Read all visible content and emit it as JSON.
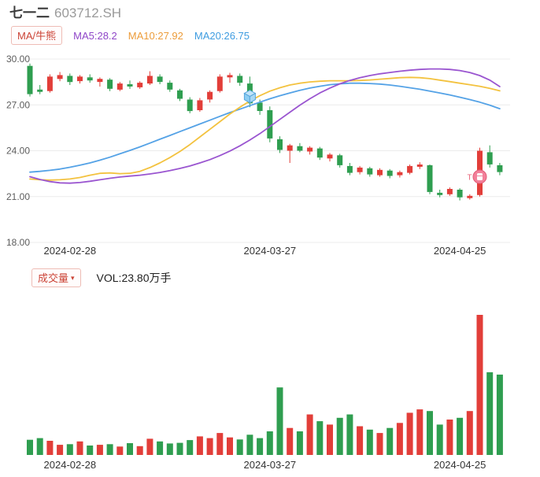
{
  "header": {
    "stock_name": "七一二",
    "stock_code": "603712.SH"
  },
  "indicators": {
    "ma_badge": "MA/牛熊",
    "ma5_label": "MA5:28.2",
    "ma10_label": "MA10:27.92",
    "ma20_label": "MA20:26.75",
    "ma5_color": "#8f46c8",
    "ma10_color": "#ec9c3a",
    "ma20_color": "#3e9ce0"
  },
  "price_axis": {
    "ticks": [
      "30.00",
      "27.00",
      "24.00",
      "21.00",
      "18.00"
    ],
    "min": 18,
    "max": 30
  },
  "x_axis": {
    "labels": [
      "2024-02-28",
      "2024-03-27",
      "2024-04-25"
    ],
    "label_indices": [
      4,
      24,
      43
    ]
  },
  "volume_panel": {
    "badge": "成交量",
    "arrow": "▾",
    "vol_label": "VOL:23.80万手"
  },
  "colors": {
    "up": "#e23e39",
    "down": "#2f9e50",
    "grid": "#ececec"
  },
  "chart_data": {
    "type": "candlestick",
    "panels": [
      "price",
      "volume"
    ],
    "title": "七一二 603712.SH",
    "price_range": [
      18,
      30
    ],
    "x_tick_labels": [
      "2024-02-28",
      "2024-03-27",
      "2024-04-25"
    ],
    "candles": [
      [
        29.55,
        29.7,
        27.55,
        27.7
      ],
      [
        28.0,
        28.3,
        27.7,
        27.85
      ],
      [
        27.9,
        29.0,
        27.8,
        28.85
      ],
      [
        28.7,
        29.15,
        28.55,
        28.95
      ],
      [
        28.9,
        29.05,
        28.3,
        28.5
      ],
      [
        28.55,
        28.95,
        28.4,
        28.85
      ],
      [
        28.8,
        29.0,
        28.45,
        28.6
      ],
      [
        28.5,
        28.8,
        28.2,
        28.7
      ],
      [
        28.65,
        28.75,
        27.9,
        28.05
      ],
      [
        28.0,
        28.5,
        27.9,
        28.4
      ],
      [
        28.35,
        28.6,
        28.05,
        28.2
      ],
      [
        28.15,
        28.55,
        28.05,
        28.45
      ],
      [
        28.4,
        29.2,
        28.3,
        28.9
      ],
      [
        28.85,
        29.0,
        28.35,
        28.5
      ],
      [
        28.45,
        28.6,
        27.85,
        28.0
      ],
      [
        27.95,
        28.05,
        27.25,
        27.4
      ],
      [
        27.35,
        27.5,
        26.45,
        26.6
      ],
      [
        26.65,
        27.45,
        26.55,
        27.3
      ],
      [
        27.35,
        27.95,
        27.15,
        27.85
      ],
      [
        27.9,
        29.0,
        27.8,
        28.85
      ],
      [
        28.8,
        29.1,
        28.45,
        28.95
      ],
      [
        28.9,
        29.05,
        28.25,
        28.45
      ],
      [
        28.4,
        28.85,
        26.85,
        27.1
      ],
      [
        27.15,
        27.35,
        26.35,
        26.6
      ],
      [
        26.65,
        26.9,
        24.55,
        24.8
      ],
      [
        24.75,
        24.95,
        23.85,
        24.05
      ],
      [
        24.0,
        24.45,
        23.2,
        24.35
      ],
      [
        24.3,
        24.5,
        23.9,
        24.0
      ],
      [
        23.95,
        24.3,
        23.75,
        24.2
      ],
      [
        24.15,
        24.25,
        23.4,
        23.55
      ],
      [
        23.5,
        23.85,
        23.3,
        23.75
      ],
      [
        23.7,
        23.8,
        22.9,
        23.05
      ],
      [
        23.0,
        23.2,
        22.4,
        22.55
      ],
      [
        22.6,
        23.0,
        22.45,
        22.9
      ],
      [
        22.85,
        22.95,
        22.3,
        22.45
      ],
      [
        22.4,
        22.85,
        22.3,
        22.75
      ],
      [
        22.7,
        22.8,
        22.2,
        22.35
      ],
      [
        22.4,
        22.7,
        22.25,
        22.6
      ],
      [
        22.55,
        23.1,
        22.45,
        23.0
      ],
      [
        22.95,
        23.25,
        22.8,
        23.1
      ],
      [
        23.05,
        23.1,
        21.15,
        21.3
      ],
      [
        21.25,
        21.45,
        20.95,
        21.1
      ],
      [
        21.15,
        21.6,
        21.05,
        21.5
      ],
      [
        21.45,
        21.55,
        20.75,
        20.95
      ],
      [
        20.9,
        21.15,
        20.8,
        21.05
      ],
      [
        21.1,
        24.2,
        21.0,
        24.0
      ],
      [
        23.9,
        24.35,
        22.9,
        23.1
      ],
      [
        23.05,
        23.2,
        22.4,
        22.6
      ]
    ],
    "ma5": [
      22.3,
      22.12,
      21.98,
      21.9,
      21.88,
      21.92,
      22.0,
      22.1,
      22.2,
      22.28,
      22.34,
      22.4,
      22.48,
      22.58,
      22.7,
      22.84,
      23.0,
      23.2,
      23.42,
      23.68,
      23.98,
      24.32,
      24.7,
      25.12,
      25.58,
      26.05,
      26.52,
      26.98,
      27.4,
      27.78,
      28.1,
      28.38,
      28.6,
      28.78,
      28.92,
      29.03,
      29.12,
      29.2,
      29.27,
      29.32,
      29.35,
      29.35,
      29.32,
      29.25,
      29.12,
      28.92,
      28.62,
      28.2
    ],
    "ma10": [
      22.15,
      22.1,
      22.08,
      22.1,
      22.15,
      22.25,
      22.4,
      22.52,
      22.55,
      22.5,
      22.52,
      22.65,
      22.9,
      23.2,
      23.55,
      23.95,
      24.4,
      24.9,
      25.4,
      25.9,
      26.4,
      26.85,
      27.25,
      27.6,
      27.9,
      28.12,
      28.3,
      28.42,
      28.5,
      28.55,
      28.58,
      28.58,
      28.58,
      28.6,
      28.63,
      28.68,
      28.73,
      28.78,
      28.8,
      28.78,
      28.72,
      28.62,
      28.52,
      28.42,
      28.32,
      28.22,
      28.08,
      27.92
    ],
    "ma20": [
      22.6,
      22.65,
      22.72,
      22.8,
      22.92,
      23.05,
      23.2,
      23.38,
      23.58,
      23.8,
      24.02,
      24.25,
      24.5,
      24.75,
      25.0,
      25.25,
      25.5,
      25.75,
      26.0,
      26.25,
      26.5,
      26.72,
      26.95,
      27.18,
      27.4,
      27.6,
      27.78,
      27.95,
      28.1,
      28.22,
      28.32,
      28.38,
      28.42,
      28.42,
      28.4,
      28.36,
      28.3,
      28.22,
      28.12,
      28.02,
      27.9,
      27.78,
      27.65,
      27.5,
      27.35,
      27.18,
      26.98,
      26.75
    ],
    "ma5_color": "#9a55d0",
    "ma10_color": "#f3c23f",
    "ma20_color": "#54a2e6",
    "volume_wan_shou": [
      4.5,
      5.0,
      4.2,
      3.0,
      3.2,
      4.0,
      2.8,
      3.0,
      3.2,
      2.5,
      3.5,
      2.6,
      4.8,
      4.0,
      3.4,
      3.6,
      4.4,
      5.5,
      5.0,
      6.5,
      5.2,
      4.6,
      6.0,
      5.0,
      7.0,
      20.0,
      8.0,
      7.0,
      12.0,
      10.0,
      9.0,
      11.0,
      12.0,
      8.5,
      7.5,
      6.5,
      8.0,
      9.5,
      12.5,
      13.5,
      13.0,
      9.0,
      10.5,
      11.0,
      13.0,
      41.5,
      24.5,
      23.8
    ],
    "latest_volume_label": "VOL:23.80万手",
    "markers": [
      {
        "name": "blue-cube-marker",
        "index": 22,
        "price": 27.6
      },
      {
        "name": "pink-badge-marker",
        "index": 45,
        "price": 22.3,
        "label": "T"
      }
    ]
  }
}
